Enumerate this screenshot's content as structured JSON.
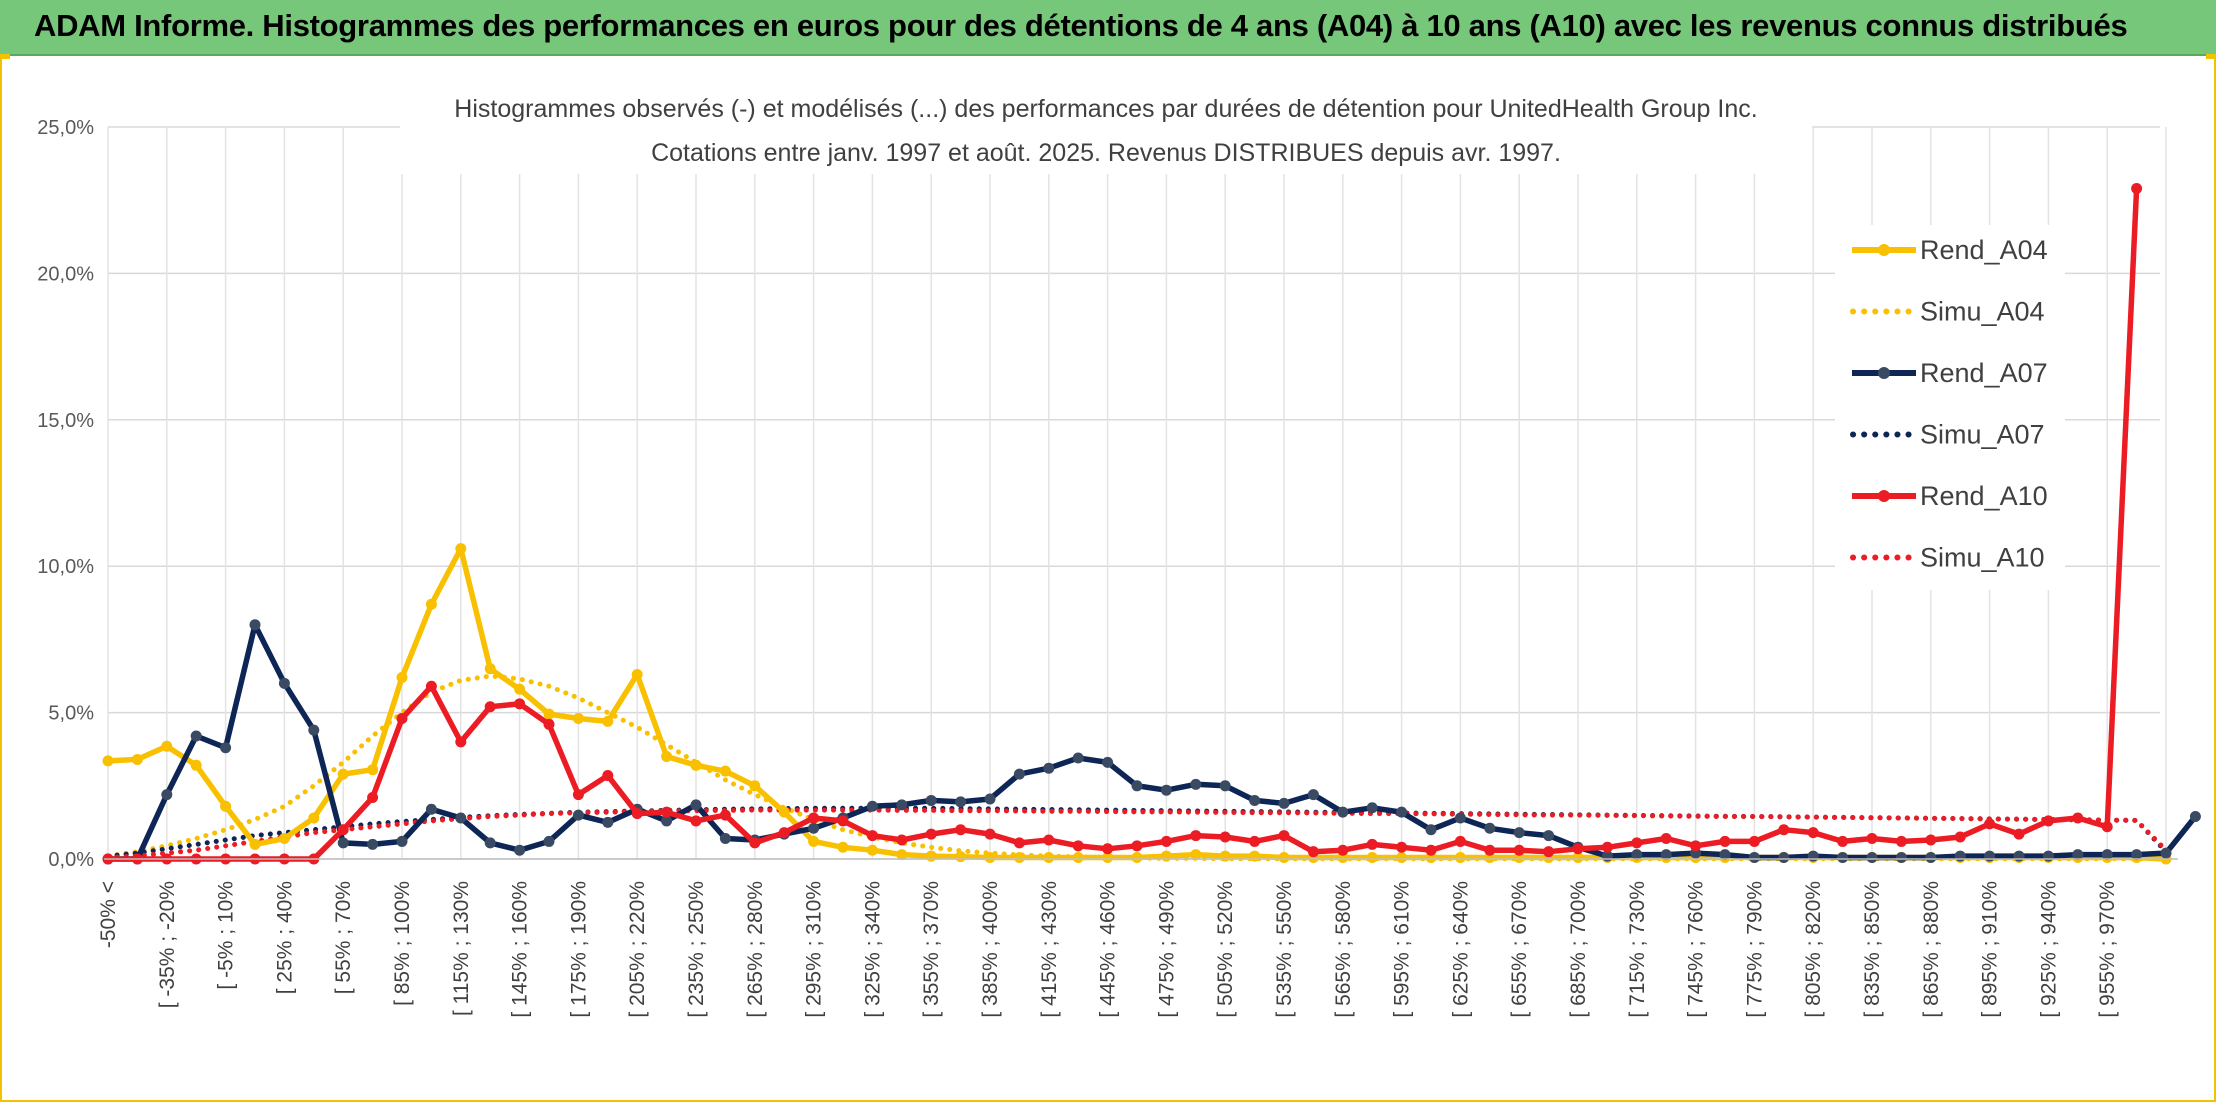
{
  "header": {
    "title": "ADAM Informe. Histogrammes des performances en euros pour des détentions de 4 ans (A04) à 10 ans (A10) avec les revenus connus distribués"
  },
  "colors": {
    "header_bg": "#77c77a",
    "a04": "#f9c000",
    "a07": "#0d2656",
    "a10": "#ec1c24",
    "grid": "#d9d9d9",
    "frame": "#f2c200"
  },
  "chart_data": {
    "type": "line",
    "title": "Histogrammes observés (-) et modélisés (...) des performances par durées de détention pour UnitedHealth Group Inc.",
    "subtitle": "Cotations entre janv. 1997 et août. 2025. Revenus DISTRIBUES depuis avr. 1997.",
    "ylim": [
      0,
      25
    ],
    "y_ticks": [
      "0,0%",
      "5,0%",
      "10,0%",
      "15,0%",
      "20,0%",
      "25,0%"
    ],
    "grid": true,
    "legend_position": "right",
    "x_labels": [
      "-50% <",
      "[ -35% ; -20%",
      "[ -5% ; 10%",
      "[ 25% ; 40%",
      "[ 55% ; 70%",
      "[ 85% ; 100%",
      "[ 115% ; 130%",
      "[ 145% ; 160%",
      "[ 175% ; 190%",
      "[ 205% ; 220%",
      "[ 235% ; 250%",
      "[ 265% ; 280%",
      "[ 295% ; 310%",
      "[ 325% ; 340%",
      "[ 355% ; 370%",
      "[ 385% ; 400%",
      "[ 415% ; 430%",
      "[ 445% ; 460%",
      "[ 475% ; 490%",
      "[ 505% ; 520%",
      "[ 535% ; 550%",
      "[ 565% ; 580%",
      "[ 595% ; 610%",
      "[ 625% ; 640%",
      "[ 655% ; 670%",
      "[ 685% ; 700%",
      "[ 715% ; 730%",
      "[ 745% ; 760%",
      "[ 775% ; 790%",
      "[ 805% ; 820%",
      "[ 835% ; 850%",
      "[ 865% ; 880%",
      "[ 895% ; 910%",
      "[ 925% ; 940%",
      "[ 955% ; 970%"
    ],
    "series": [
      {
        "name": "Rend_A04",
        "style": "solid",
        "color": "#f9c000",
        "values": [
          3.35,
          3.4,
          3.85,
          3.2,
          1.8,
          0.5,
          0.7,
          1.4,
          2.9,
          3.05,
          6.2,
          8.7,
          10.6,
          6.5,
          5.8,
          4.95,
          4.8,
          4.7,
          6.3,
          3.5,
          3.2,
          3.0,
          2.5,
          1.6,
          0.6,
          0.4,
          0.3,
          0.15,
          0.1,
          0.08,
          0.05,
          0.05,
          0.05,
          0.05,
          0.05,
          0.05,
          0.1,
          0.15,
          0.1,
          0.1,
          0.05,
          0.05,
          0.05,
          0.05,
          0.05,
          0.05,
          0.05,
          0.05,
          0.05,
          0.05,
          0.05,
          0.05,
          0.05,
          0.05,
          0.05,
          0.05,
          0.05,
          0.05,
          0.05,
          0.05,
          0.05,
          0.05,
          0.05,
          0.05,
          0.05,
          0.05,
          0.05,
          0.05,
          0.05,
          0.05,
          0
        ]
      },
      {
        "name": "Simu_A04",
        "style": "dotted",
        "color": "#f9c000",
        "values": [
          0.1,
          0.25,
          0.45,
          0.7,
          1.0,
          1.35,
          1.8,
          2.5,
          3.3,
          4.2,
          5.0,
          5.7,
          6.1,
          6.25,
          6.15,
          5.9,
          5.5,
          5.0,
          4.5,
          3.9,
          3.3,
          2.7,
          2.2,
          1.75,
          1.35,
          1.0,
          0.75,
          0.55,
          0.4,
          0.28,
          0.2,
          0.14,
          0.1,
          0.07,
          0.05,
          0.03,
          0.02,
          0.02,
          0.01,
          0.01,
          0.01,
          0.01,
          0.01,
          0.01,
          0.01,
          0.01,
          0.01,
          0.01,
          0.01,
          0.01,
          0.01,
          0.01,
          0.01,
          0.01,
          0.01,
          0.01,
          0.01,
          0.01,
          0.01,
          0.01,
          0.01,
          0.01,
          0.01,
          0.01,
          0.01,
          0.01,
          0.01,
          0.01,
          0.01,
          0.01,
          0.01
        ]
      },
      {
        "name": "Rend_A07",
        "style": "solid",
        "color": "#0d2656",
        "values": [
          0,
          0,
          2.2,
          4.2,
          3.8,
          8.0,
          6.0,
          4.4,
          0.55,
          0.5,
          0.6,
          1.7,
          1.4,
          0.55,
          0.3,
          0.6,
          1.5,
          1.25,
          1.7,
          1.3,
          1.85,
          0.7,
          0.65,
          0.85,
          1.05,
          1.4,
          1.8,
          1.85,
          2.0,
          1.95,
          2.05,
          2.9,
          3.1,
          3.45,
          3.3,
          2.5,
          2.35,
          2.55,
          2.5,
          2.0,
          1.9,
          2.2,
          1.6,
          1.75,
          1.6,
          1.0,
          1.4,
          1.05,
          0.9,
          0.8,
          0.4,
          0.1,
          0.15,
          0.15,
          0.2,
          0.15,
          0.05,
          0.05,
          0.1,
          0.05,
          0.05,
          0.05,
          0.05,
          0.1,
          0.1,
          0.1,
          0.1,
          0.15,
          0.15,
          0.15,
          0.2,
          1.45
        ]
      },
      {
        "name": "Simu_A07",
        "style": "dotted",
        "color": "#0d2656",
        "values": [
          0.1,
          0.2,
          0.35,
          0.5,
          0.65,
          0.8,
          0.9,
          1.0,
          1.1,
          1.2,
          1.28,
          1.35,
          1.42,
          1.48,
          1.52,
          1.56,
          1.6,
          1.62,
          1.64,
          1.66,
          1.68,
          1.7,
          1.71,
          1.72,
          1.73,
          1.73,
          1.73,
          1.73,
          1.73,
          1.72,
          1.71,
          1.7,
          1.69,
          1.68,
          1.67,
          1.66,
          1.65,
          1.64,
          1.63,
          1.62,
          1.61,
          1.6,
          1.59,
          1.58,
          1.57,
          1.56,
          1.55,
          1.54,
          1.53,
          1.52,
          1.51,
          1.5,
          1.49,
          1.48,
          1.47,
          1.46,
          1.45,
          1.44,
          1.43,
          1.42,
          1.41,
          1.4,
          1.39,
          1.38,
          1.37,
          1.36,
          1.35,
          1.34,
          1.33,
          1.32,
          0.25
        ]
      },
      {
        "name": "Rend_A10",
        "style": "solid",
        "color": "#ec1c24",
        "values": [
          0,
          0,
          0,
          0,
          0,
          0,
          0,
          0,
          1.0,
          2.1,
          4.8,
          5.9,
          4.0,
          5.2,
          5.3,
          4.6,
          2.2,
          2.85,
          1.55,
          1.6,
          1.3,
          1.5,
          0.55,
          0.9,
          1.4,
          1.3,
          0.8,
          0.65,
          0.85,
          1.0,
          0.85,
          0.55,
          0.65,
          0.45,
          0.35,
          0.45,
          0.6,
          0.8,
          0.75,
          0.6,
          0.8,
          0.25,
          0.3,
          0.5,
          0.4,
          0.3,
          0.6,
          0.3,
          0.3,
          0.25,
          0.35,
          0.4,
          0.55,
          0.7,
          0.45,
          0.6,
          0.6,
          1.0,
          0.9,
          0.6,
          0.7,
          0.6,
          0.65,
          0.75,
          1.2,
          0.85,
          1.3,
          1.4,
          1.1,
          22.9
        ]
      },
      {
        "name": "Simu_A10",
        "style": "dotted",
        "color": "#ec1c24",
        "values": [
          0.05,
          0.1,
          0.2,
          0.3,
          0.45,
          0.6,
          0.75,
          0.9,
          1.0,
          1.1,
          1.2,
          1.3,
          1.38,
          1.45,
          1.5,
          1.55,
          1.58,
          1.6,
          1.62,
          1.64,
          1.65,
          1.66,
          1.67,
          1.67,
          1.67,
          1.67,
          1.67,
          1.66,
          1.66,
          1.65,
          1.65,
          1.64,
          1.63,
          1.63,
          1.62,
          1.61,
          1.61,
          1.6,
          1.59,
          1.58,
          1.58,
          1.57,
          1.56,
          1.55,
          1.55,
          1.54,
          1.53,
          1.52,
          1.51,
          1.5,
          1.5,
          1.49,
          1.48,
          1.47,
          1.46,
          1.45,
          1.45,
          1.44,
          1.43,
          1.42,
          1.41,
          1.4,
          1.39,
          1.38,
          1.37,
          1.36,
          1.35,
          1.34,
          1.33,
          1.32,
          0.3
        ]
      }
    ]
  }
}
